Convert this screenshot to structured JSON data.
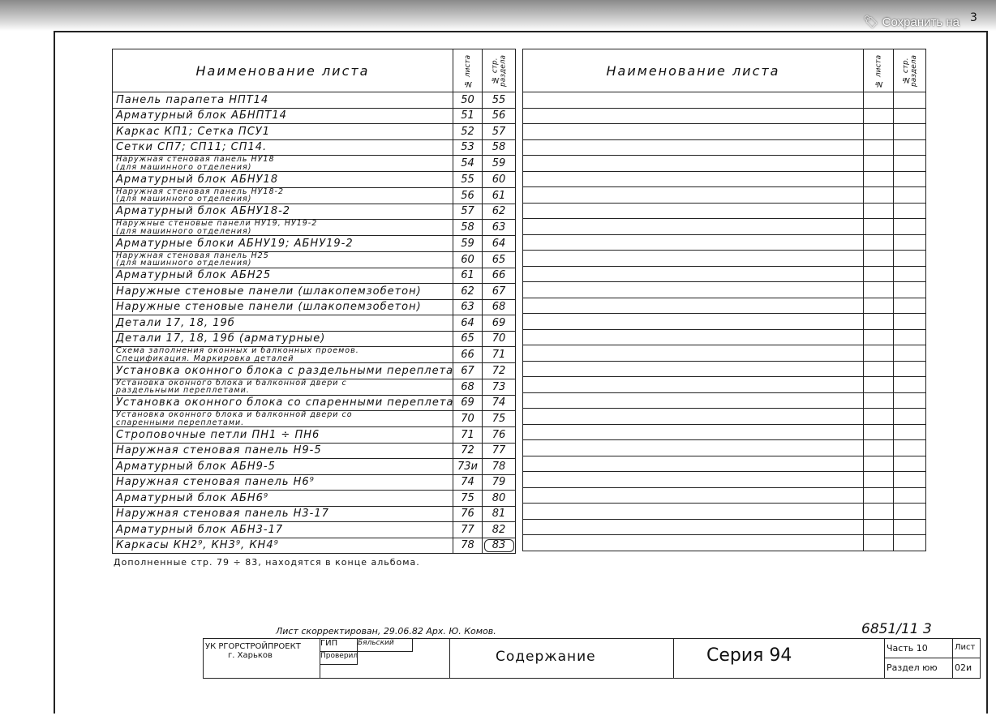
{
  "overlay": {
    "save_label": "Сохранить на",
    "sheet_corner": "3"
  },
  "header": {
    "name": "Наименование листа",
    "sheet_no": "№ листа",
    "page_no": "№ стр. раздела"
  },
  "rows": [
    {
      "name": "Панель парапета НПТ14",
      "sheet": "50",
      "page": "55"
    },
    {
      "name": "Арматурный блок АБНПТ14",
      "sheet": "51",
      "page": "56"
    },
    {
      "name": "Каркас КП1; Сетка ПСУ1",
      "sheet": "52",
      "page": "57"
    },
    {
      "name": "Сетки СП7; СП11; СП14.",
      "sheet": "53",
      "page": "58"
    },
    {
      "name": "Наружная стеновая панель НУ18\n(для машинного отделения)",
      "sheet": "54",
      "page": "59"
    },
    {
      "name": "Арматурный блок АБНУ18",
      "sheet": "55",
      "page": "60"
    },
    {
      "name": "Наружная стеновая панель НУ18-2\n(для машинного отделения)",
      "sheet": "56",
      "page": "61"
    },
    {
      "name": "Арматурный блок АБНУ18-2",
      "sheet": "57",
      "page": "62"
    },
    {
      "name": "Наружные стеновые панели НУ19, НУ19-2\n(для машинного отделения)",
      "sheet": "58",
      "page": "63"
    },
    {
      "name": "Арматурные блоки АБНУ19; АБНУ19-2",
      "sheet": "59",
      "page": "64"
    },
    {
      "name": "Наружная стеновая панель Н25\n(для машинного отделения)",
      "sheet": "60",
      "page": "65"
    },
    {
      "name": "Арматурный блок АБН25",
      "sheet": "61",
      "page": "66"
    },
    {
      "name": "Наружные стеновые панели (шлакопемзобетон)",
      "sheet": "62",
      "page": "67"
    },
    {
      "name": "Наружные стеновые панели (шлакопемзобетон)",
      "sheet": "63",
      "page": "68"
    },
    {
      "name": "Детали 17, 18, 19б",
      "sheet": "64",
      "page": "69"
    },
    {
      "name": "Детали 17, 18, 19б (арматурные)",
      "sheet": "65",
      "page": "70"
    },
    {
      "name": "Схема заполнения оконных и балконных проемов.\nСпецификация. Маркировка деталей",
      "sheet": "66",
      "page": "71"
    },
    {
      "name": "Установка оконного блока с раздельными переплетами",
      "sheet": "67",
      "page": "72"
    },
    {
      "name": "Установка оконного блока и балконной двери с\nраздельными переплетами.",
      "sheet": "68",
      "page": "73"
    },
    {
      "name": "Установка оконного блока со спаренными переплетами",
      "sheet": "69",
      "page": "74"
    },
    {
      "name": "Установка оконного блока и балконной двери со\nспаренными переплетами.",
      "sheet": "70",
      "page": "75"
    },
    {
      "name": "Строповочные петли ПН1 ÷ ПН6",
      "sheet": "71",
      "page": "76"
    },
    {
      "name": "Наружная стеновая панель Н9-5",
      "sheet": "72",
      "page": "77"
    },
    {
      "name": "Арматурный блок АБН9-5",
      "sheet": "73и",
      "page": "78"
    },
    {
      "name": "Наружная стеновая панель Н6⁹",
      "sheet": "74",
      "page": "79"
    },
    {
      "name": "Арматурный блок АБН6⁹",
      "sheet": "75",
      "page": "80"
    },
    {
      "name": "Наружная стеновая панель Н3-17",
      "sheet": "76",
      "page": "81"
    },
    {
      "name": "Арматурный блок АБН3-17",
      "sheet": "77",
      "page": "82"
    },
    {
      "name": "Каркасы КН2⁹, КН3⁹, КН4⁹",
      "sheet": "78",
      "page": "83"
    }
  ],
  "note": "Дополненные стр. 79 ÷ 83, находятся в конце альбома.",
  "correction": "Лист скорректирован, 29.06.82 Арх. Ю. Комов.",
  "doc_number": "6851/11 3",
  "title_block": {
    "org": "УК РГОРСТРОЙПРОЕКТ",
    "city": "г. Харьков",
    "role1": "ГИП",
    "role2": "Проверил",
    "person1": "Бяльский",
    "title": "Содержание",
    "series": "Серия 94",
    "part": "Часть 10",
    "section": "Раздел юю",
    "sheet_label": "Лист",
    "sheet_value": "02и"
  }
}
